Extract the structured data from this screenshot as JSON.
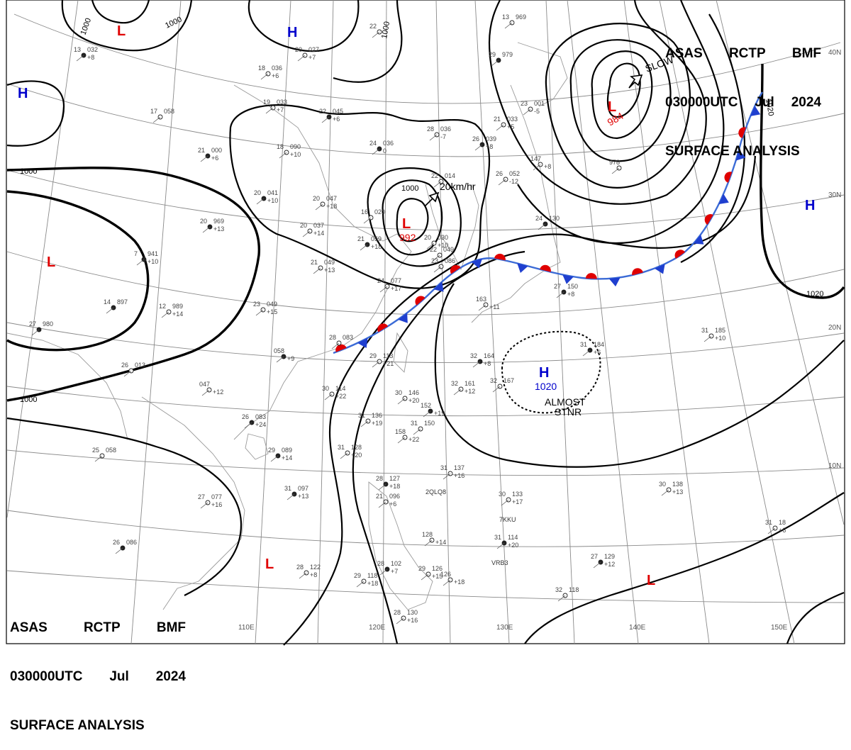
{
  "title_top_right": {
    "line1": [
      "ASAS",
      "RCTP",
      "BMF"
    ],
    "line2": [
      "030000UTC",
      "Jul",
      "2024"
    ],
    "line3": "SURFACE ANALYSIS"
  },
  "title_bottom_left": {
    "line1": [
      "ASAS",
      "RCTP",
      "BMF"
    ],
    "line2": [
      "030000UTC",
      "Jul",
      "2024"
    ],
    "line3": "SURFACE ANALYSIS"
  },
  "lon_labels": [
    "110E",
    "120E",
    "130E",
    "140E",
    "150E"
  ],
  "lat_labels": [
    "40N",
    "30N",
    "20N",
    "10N"
  ],
  "pressure_centers": [
    {
      "type": "L",
      "color": "#e00000"
    },
    {
      "type": "H",
      "color": "#0000cc"
    },
    {
      "type": "H",
      "color": "#0000cc"
    },
    {
      "type": "L",
      "color": "#e00000"
    },
    {
      "type": "L",
      "color": "#e00000",
      "value": "992"
    },
    {
      "type": "L",
      "color": "#e00000",
      "value": "984"
    },
    {
      "type": "H",
      "color": "#0000cc"
    },
    {
      "type": "H",
      "color": "#0000cc",
      "value": "1020"
    },
    {
      "type": "L",
      "color": "#e00000"
    },
    {
      "type": "L",
      "color": "#e00000"
    }
  ],
  "isobar_labels": [
    "1000",
    "1000",
    "1000",
    "1000",
    "1000",
    "1000",
    "1020",
    "1020"
  ],
  "motion_labels": {
    "low_992": "20km/hr",
    "low_984": "SLOW"
  },
  "annotations": {
    "almost": "ALMOST",
    "stnr": "STNR"
  },
  "ship_ids": [
    "2QLQ8",
    "7KKU",
    "VRB3"
  ],
  "stations": [
    {
      "t": "13",
      "p": "032",
      "d": "+8"
    },
    {
      "t": "18",
      "p": "036",
      "d": "+6"
    },
    {
      "t": "17",
      "p": "058",
      "d": ""
    },
    {
      "t": "21",
      "p": "000",
      "d": "+6"
    },
    {
      "t": "20",
      "p": "027",
      "d": "+7"
    },
    {
      "t": "19",
      "p": "033",
      "d": "+7"
    },
    {
      "t": "22",
      "p": "045",
      "d": "+6"
    },
    {
      "t": "22",
      "p": "",
      "d": ""
    },
    {
      "t": "18",
      "p": "090",
      "d": "+10"
    },
    {
      "t": "24",
      "p": "036",
      "d": "0"
    },
    {
      "t": "28",
      "p": "036",
      "d": "-7"
    },
    {
      "t": "21",
      "p": "033",
      "d": "+5"
    },
    {
      "t": "29",
      "p": "979",
      "d": ""
    },
    {
      "t": "13",
      "p": "969",
      "d": ""
    },
    {
      "t": "23",
      "p": "001",
      "d": "-5"
    },
    {
      "t": "26",
      "p": "039",
      "d": "+8"
    },
    {
      "t": "26",
      "p": "052",
      "d": "-12"
    },
    {
      "t": "22",
      "p": "014",
      "d": ""
    },
    {
      "t": "20",
      "p": "041",
      "d": "+10"
    },
    {
      "t": "20",
      "p": "047",
      "d": "+18"
    },
    {
      "t": "20",
      "p": "037",
      "d": "+14"
    },
    {
      "t": "20",
      "p": "969",
      "d": "+13"
    },
    {
      "t": "16",
      "p": "020",
      "d": ""
    },
    {
      "t": "20",
      "p": "030",
      "d": "+10"
    },
    {
      "t": "21",
      "p": "059",
      "d": "+18"
    },
    {
      "t": "21",
      "p": "049",
      "d": "+13"
    },
    {
      "t": "22",
      "p": "049",
      "d": ""
    },
    {
      "t": "7",
      "p": "941",
      "d": "+10"
    },
    {
      "t": "24",
      "p": "077",
      "d": "+17"
    },
    {
      "t": "23",
      "p": "086",
      "d": ""
    },
    {
      "t": "24",
      "p": "130",
      "d": ""
    },
    {
      "t": "147",
      "p": "",
      "d": "+8"
    },
    {
      "t": "978",
      "p": "",
      "d": ""
    },
    {
      "t": "14",
      "p": "897",
      "d": ""
    },
    {
      "t": "12",
      "p": "989",
      "d": "+14"
    },
    {
      "t": "23",
      "p": "049",
      "d": "+15"
    },
    {
      "t": "27",
      "p": "980",
      "d": ""
    },
    {
      "t": "28",
      "p": "083",
      "d": ""
    },
    {
      "t": "29",
      "p": "113",
      "d": "+21"
    },
    {
      "t": "27",
      "p": "150",
      "d": "+8"
    },
    {
      "t": "163",
      "p": "",
      "d": "+11"
    },
    {
      "t": "26",
      "p": "013",
      "d": ""
    },
    {
      "t": "058",
      "p": "",
      "d": "+9"
    },
    {
      "t": "047",
      "p": "",
      "d": "+12"
    },
    {
      "t": "30",
      "p": "114",
      "d": "+22"
    },
    {
      "t": "32",
      "p": "164",
      "d": "+8"
    },
    {
      "t": "32",
      "p": "161",
      "d": "+12"
    },
    {
      "t": "32",
      "p": "167",
      "d": ""
    },
    {
      "t": "31",
      "p": "184",
      "d": "+6"
    },
    {
      "t": "31",
      "p": "185",
      "d": "+10"
    },
    {
      "t": "30",
      "p": "146",
      "d": "+20"
    },
    {
      "t": "152",
      "p": "",
      "d": "+19"
    },
    {
      "t": "31",
      "p": "150",
      "d": ""
    },
    {
      "t": "31",
      "p": "136",
      "d": "+19"
    },
    {
      "t": "26",
      "p": "083",
      "d": "+24"
    },
    {
      "t": "158",
      "p": "",
      "d": "+22"
    },
    {
      "t": "25",
      "p": "058",
      "d": ""
    },
    {
      "t": "29",
      "p": "089",
      "d": "+14"
    },
    {
      "t": "31",
      "p": "128",
      "d": "+20"
    },
    {
      "t": "31",
      "p": "137",
      "d": "+16"
    },
    {
      "t": "28",
      "p": "127",
      "d": "+18"
    },
    {
      "t": "21",
      "p": "096",
      "d": "+6"
    },
    {
      "t": "27",
      "p": "077",
      "d": "+16"
    },
    {
      "t": "31",
      "p": "097",
      "d": "+13"
    },
    {
      "t": "30",
      "p": "133",
      "d": "+17"
    },
    {
      "t": "30",
      "p": "138",
      "d": "+13"
    },
    {
      "t": "31",
      "p": "114",
      "d": "+20"
    },
    {
      "t": "128",
      "p": "",
      "d": "+14"
    },
    {
      "t": "31",
      "p": "18",
      "d": "+6"
    },
    {
      "t": "26",
      "p": "086",
      "d": ""
    },
    {
      "t": "28",
      "p": "122",
      "d": "+8"
    },
    {
      "t": "29",
      "p": "118",
      "d": "+18"
    },
    {
      "t": "28",
      "p": "102",
      "d": "+7"
    },
    {
      "t": "29",
      "p": "126",
      "d": "+15"
    },
    {
      "t": "126",
      "p": "",
      "d": "+18"
    },
    {
      "t": "27",
      "p": "129",
      "d": "+12"
    },
    {
      "t": "32",
      "p": "118",
      "d": ""
    },
    {
      "t": "28",
      "p": "130",
      "d": "+16"
    }
  ]
}
